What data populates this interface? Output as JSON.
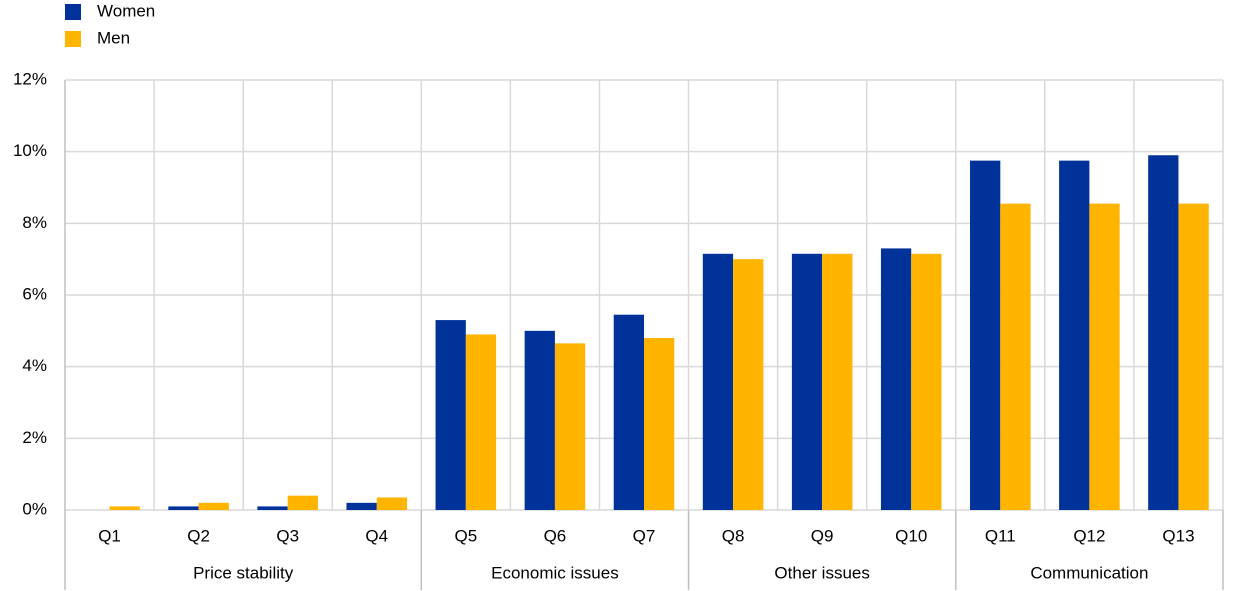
{
  "chart_data": {
    "type": "bar",
    "groups": [
      {
        "label": "Price stability",
        "categories": [
          "Q1",
          "Q2",
          "Q3",
          "Q4"
        ]
      },
      {
        "label": "Economic issues",
        "categories": [
          "Q5",
          "Q6",
          "Q7"
        ]
      },
      {
        "label": "Other issues",
        "categories": [
          "Q8",
          "Q9",
          "Q10"
        ]
      },
      {
        "label": "Communication",
        "categories": [
          "Q11",
          "Q12",
          "Q13"
        ]
      }
    ],
    "series": [
      {
        "name": "Women",
        "color": "#003299",
        "values": [
          0,
          0.1,
          0.1,
          0.2,
          5.3,
          5.0,
          5.45,
          7.15,
          7.15,
          7.3,
          9.75,
          9.75,
          9.9
        ]
      },
      {
        "name": "Men",
        "color": "#ffb400",
        "values": [
          0.1,
          0.2,
          0.4,
          0.35,
          4.9,
          4.65,
          4.8,
          7.0,
          7.15,
          7.15,
          8.55,
          8.55,
          8.55
        ]
      }
    ],
    "ylim": [
      0,
      12
    ],
    "yticks": [
      {
        "value": 0,
        "label": "0%"
      },
      {
        "value": 2,
        "label": "2%"
      },
      {
        "value": 4,
        "label": "4%"
      },
      {
        "value": 6,
        "label": "6%"
      },
      {
        "value": 8,
        "label": "8%"
      },
      {
        "value": 10,
        "label": "10%"
      },
      {
        "value": 12,
        "label": "12%"
      }
    ],
    "grid": true,
    "legend": "top-left"
  }
}
